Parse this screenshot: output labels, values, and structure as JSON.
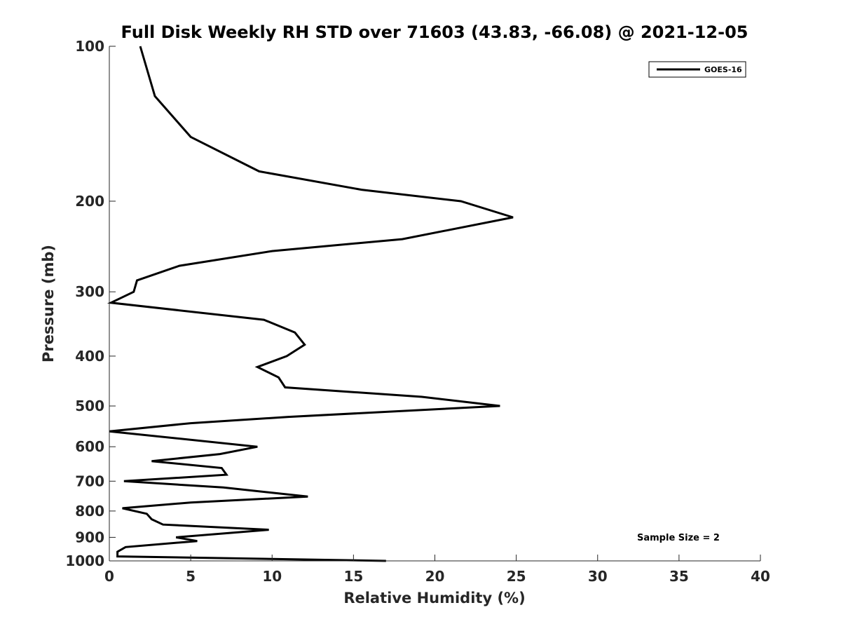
{
  "chart_data": {
    "type": "line",
    "title": "Full Disk Weekly RH STD over 71603 (43.83, -66.08) @ 2021-12-05",
    "xlabel": "Relative Humidity (%)",
    "ylabel": "Pressure (mb)",
    "xlim": [
      0,
      40
    ],
    "ylim": [
      100,
      1000
    ],
    "yscale": "log",
    "reverse_y": true,
    "grid": false,
    "xticks": [
      0,
      5,
      10,
      15,
      20,
      25,
      30,
      35,
      40
    ],
    "yticks": [
      100,
      200,
      300,
      400,
      500,
      600,
      700,
      800,
      900,
      1000
    ],
    "legend": {
      "position": "top-right",
      "entries": [
        "GOES-16"
      ]
    },
    "annotation": "Sample Size = 2",
    "series": [
      {
        "name": "GOES-16",
        "color": "#000000",
        "points": [
          [
            1.9,
            100
          ],
          [
            2.8,
            125
          ],
          [
            5.0,
            150
          ],
          [
            9.2,
            175
          ],
          [
            15.5,
            190
          ],
          [
            21.6,
            200
          ],
          [
            24.8,
            215
          ],
          [
            18.0,
            237
          ],
          [
            10.0,
            250
          ],
          [
            4.3,
            267
          ],
          [
            1.7,
            285
          ],
          [
            1.5,
            300
          ],
          [
            0.1,
            315
          ],
          [
            9.5,
            340
          ],
          [
            11.4,
            360
          ],
          [
            12.0,
            380
          ],
          [
            10.9,
            400
          ],
          [
            9.1,
            420
          ],
          [
            10.4,
            440
          ],
          [
            10.8,
            460
          ],
          [
            19.2,
            480
          ],
          [
            24.0,
            500
          ],
          [
            11.0,
            525
          ],
          [
            5.0,
            540
          ],
          [
            0.0,
            560
          ],
          [
            9.1,
            600
          ],
          [
            6.8,
            620
          ],
          [
            2.6,
            640
          ],
          [
            6.9,
            660
          ],
          [
            7.2,
            680
          ],
          [
            0.9,
            700
          ],
          [
            7.0,
            720
          ],
          [
            12.2,
            750
          ],
          [
            5.0,
            770
          ],
          [
            0.8,
            790
          ],
          [
            2.3,
            810
          ],
          [
            2.6,
            830
          ],
          [
            3.3,
            850
          ],
          [
            9.8,
            870
          ],
          [
            4.1,
            900
          ],
          [
            5.4,
            915
          ],
          [
            1.0,
            940
          ],
          [
            0.5,
            960
          ],
          [
            0.5,
            980
          ],
          [
            17.0,
            1000
          ]
        ]
      }
    ]
  }
}
